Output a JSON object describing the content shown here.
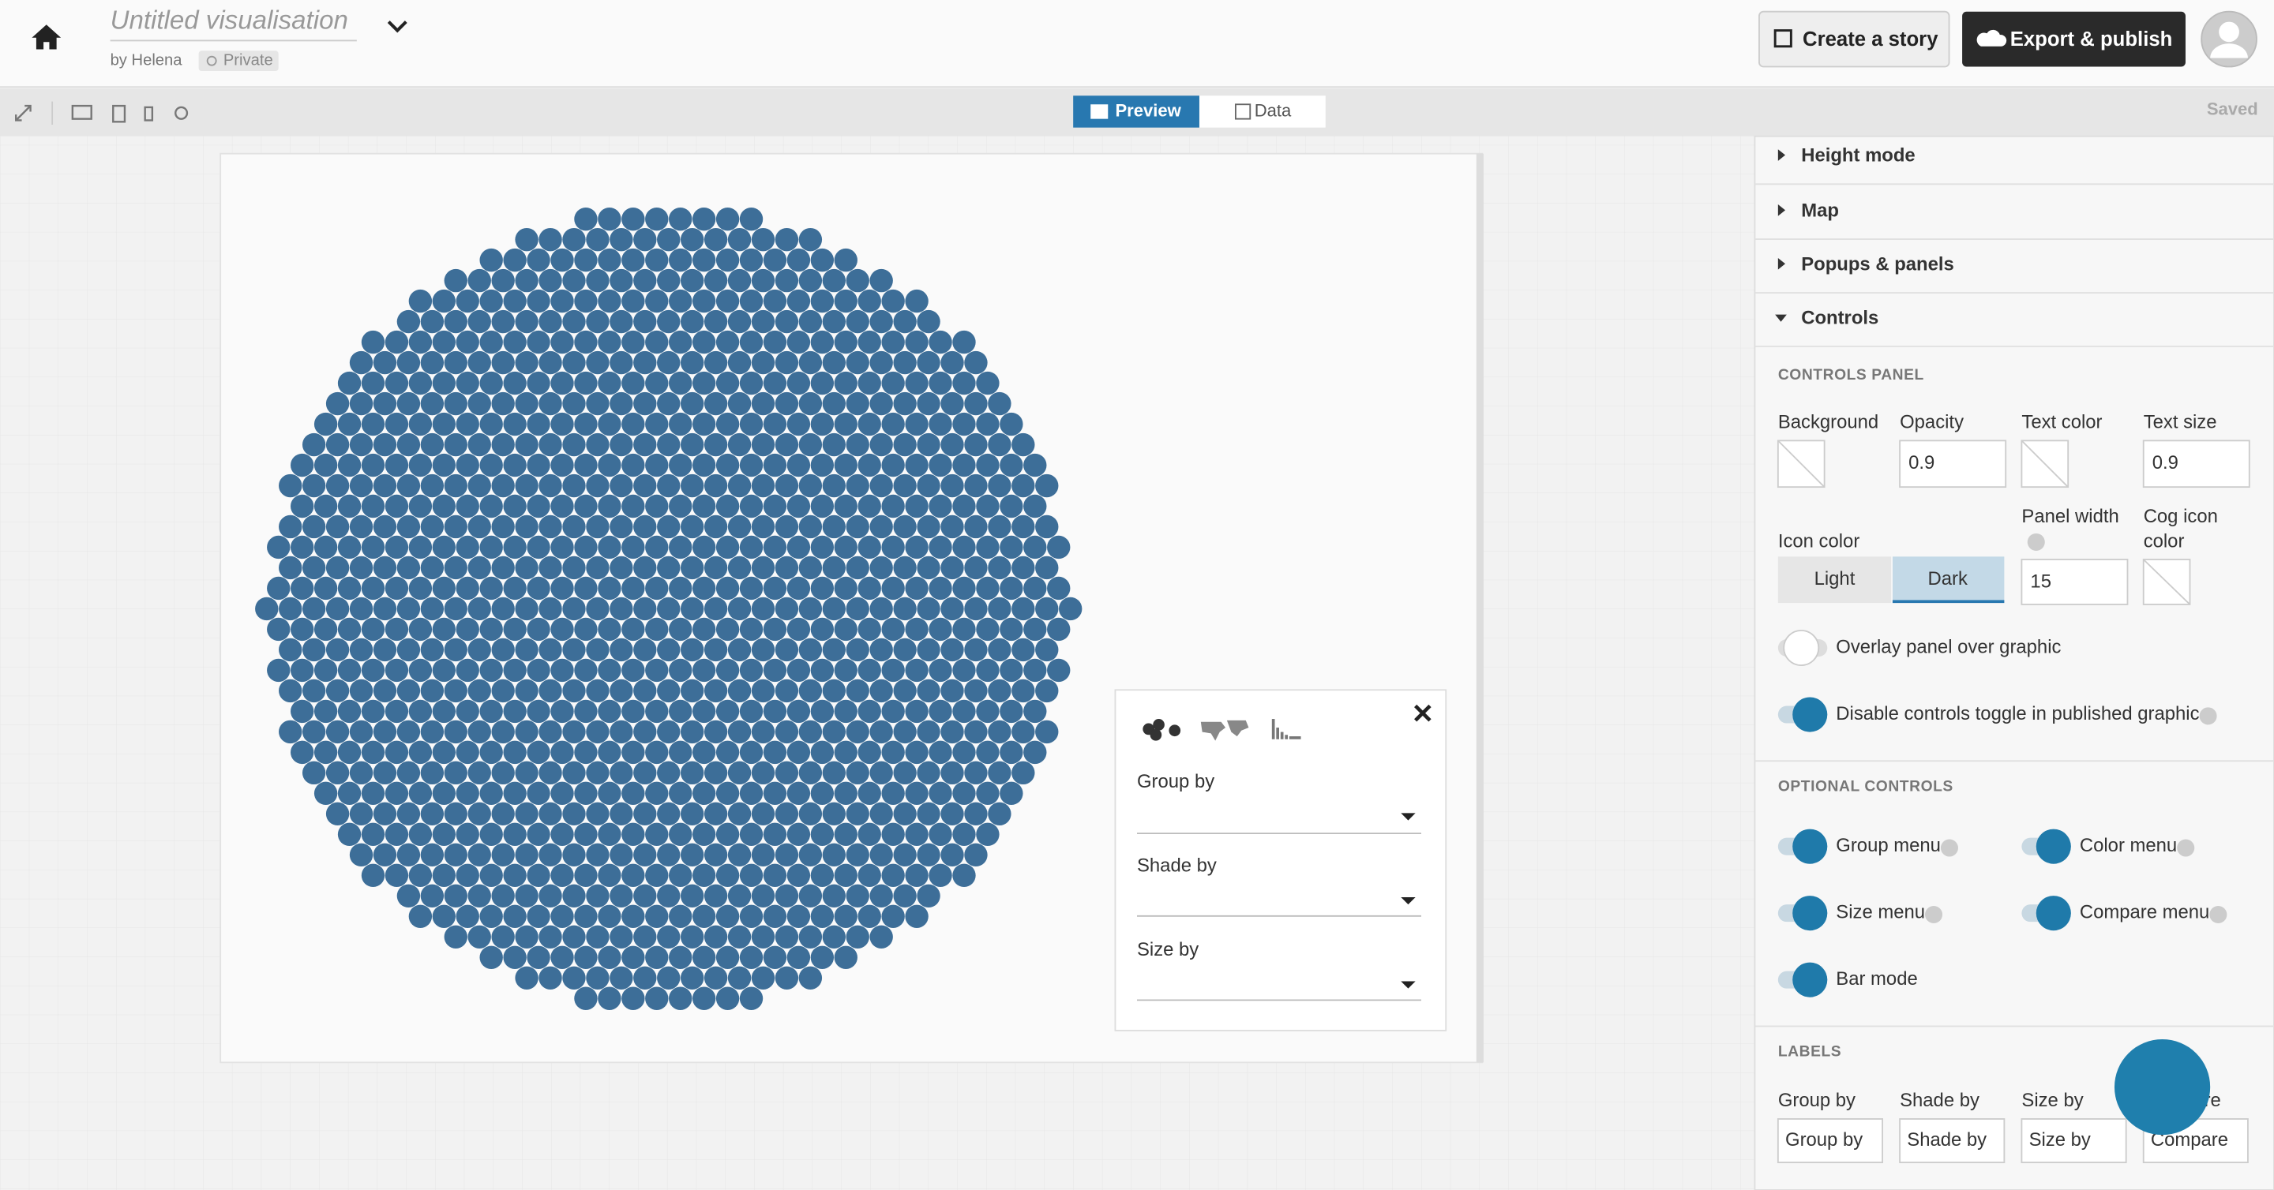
{
  "header": {
    "title": "Untitled visualisation",
    "author": "by Helena",
    "privacy": "Private",
    "create_story": "Create a story",
    "export_publish": "Export & publish"
  },
  "toolbar": {
    "tabs": [
      "Preview",
      "Data"
    ],
    "status": "Saved"
  },
  "popup": {
    "menus": [
      "Group by",
      "Shade by",
      "Size by"
    ]
  },
  "sidebar": {
    "sections": [
      "Height mode",
      "Map",
      "Popups & panels",
      "Controls"
    ],
    "controls_panel": {
      "heading": "CONTROLS PANEL",
      "background": "Background",
      "opacity": "Opacity",
      "opacity_value": 0.9,
      "text_color": "Text color",
      "text_size": "Text size",
      "text_size_value": 0.9,
      "icon_color": "Icon color",
      "icon_options": [
        "Light",
        "Dark"
      ],
      "panel_width": "Panel width",
      "panel_width_value": 15,
      "cog_icon_color": [
        "Cog icon",
        "color"
      ],
      "overlay": "Overlay panel over graphic",
      "disable_toggle": "Disable controls toggle in published graphic"
    },
    "optional_controls": {
      "heading": "OPTIONAL CONTROLS",
      "items": [
        "Group menu",
        "Color menu",
        "Size menu",
        "Compare menu",
        "Bar mode"
      ]
    },
    "labels": {
      "heading": "LABELS",
      "fields": [
        {
          "label": "Group by",
          "value": "Group by"
        },
        {
          "label": "Shade by",
          "value": "Shade by"
        },
        {
          "label": "Size by",
          "value": "Size by"
        },
        {
          "label": "Compare",
          "value": "Compare"
        }
      ]
    }
  }
}
